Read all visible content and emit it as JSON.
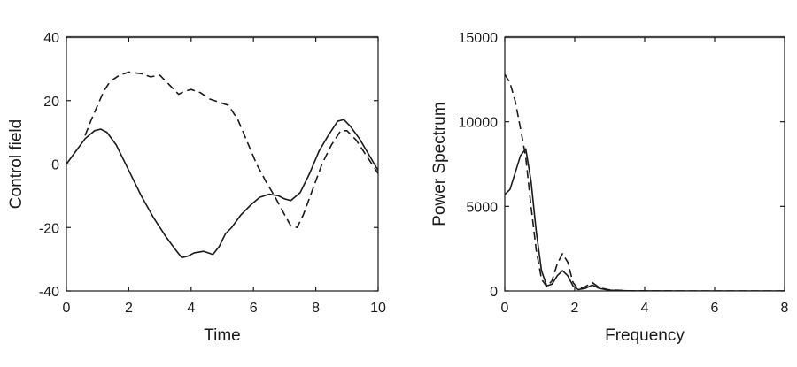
{
  "chart_data": [
    {
      "type": "line",
      "title": "",
      "xlabel": "Time",
      "ylabel": "Control field",
      "xlim": [
        0,
        10
      ],
      "ylim": [
        -40,
        40
      ],
      "xticks": [
        0,
        2,
        4,
        6,
        8,
        10
      ],
      "yticks": [
        -40,
        -20,
        0,
        20,
        40
      ],
      "grid": false,
      "legend": "none",
      "series": [
        {
          "style": "solid",
          "color": "#1a1a1a",
          "x": [
            0,
            0.3,
            0.6,
            0.9,
            1.1,
            1.3,
            1.6,
            2.0,
            2.4,
            2.8,
            3.2,
            3.5,
            3.7,
            3.9,
            4.1,
            4.4,
            4.7,
            4.9,
            5.1,
            5.3,
            5.6,
            5.9,
            6.2,
            6.5,
            6.8,
            7.0,
            7.2,
            7.5,
            7.8,
            8.1,
            8.4,
            8.7,
            8.9,
            9.1,
            9.4,
            9.7,
            10.0
          ],
          "y": [
            0,
            4,
            8,
            10.5,
            11,
            10,
            6,
            -2,
            -10,
            -17,
            -23,
            -27,
            -29.5,
            -29,
            -28,
            -27.5,
            -28.5,
            -26,
            -22,
            -20,
            -16,
            -13,
            -10.5,
            -9.5,
            -10,
            -11,
            -11.5,
            -9,
            -3,
            4,
            9,
            13.5,
            14,
            12,
            8,
            3,
            -2
          ]
        },
        {
          "style": "dashed",
          "color": "#1a1a1a",
          "x": [
            0.6,
            0.8,
            1.0,
            1.2,
            1.4,
            1.7,
            2.0,
            2.4,
            2.7,
            3.0,
            3.2,
            3.4,
            3.6,
            3.8,
            4.0,
            4.3,
            4.6,
            4.9,
            5.2,
            5.5,
            5.8,
            6.1,
            6.4,
            6.7,
            7.0,
            7.2,
            7.4,
            7.6,
            7.9,
            8.2,
            8.5,
            8.8,
            9.0,
            9.3,
            9.6,
            10.0
          ],
          "y": [
            9,
            14,
            18.5,
            23,
            26,
            28,
            29,
            28.5,
            27.5,
            28,
            26,
            24,
            22,
            23,
            23.5,
            22.5,
            20.5,
            19.5,
            18.5,
            14,
            7,
            0,
            -5.5,
            -10.5,
            -16,
            -19.5,
            -20,
            -16,
            -8,
            0,
            6,
            10.5,
            10.5,
            7.5,
            3,
            -3
          ]
        }
      ]
    },
    {
      "type": "line",
      "title": "",
      "xlabel": "Frequency",
      "ylabel": "Power Spectrum",
      "xlim": [
        0,
        8
      ],
      "ylim": [
        0,
        15000
      ],
      "xticks": [
        0,
        2,
        4,
        6,
        8
      ],
      "yticks": [
        0,
        5000,
        10000,
        15000
      ],
      "grid": false,
      "legend": "none",
      "series": [
        {
          "style": "solid",
          "color": "#1a1a1a",
          "x": [
            0,
            0.15,
            0.3,
            0.45,
            0.6,
            0.75,
            0.9,
            1.05,
            1.2,
            1.35,
            1.5,
            1.65,
            1.8,
            1.95,
            2.1,
            2.3,
            2.5,
            2.7,
            3.0,
            3.5,
            4.0,
            5.0,
            6.0,
            7.0,
            8.0
          ],
          "y": [
            5700,
            6000,
            7000,
            8000,
            8400,
            6500,
            3500,
            1200,
            300,
            400,
            900,
            1200,
            900,
            300,
            80,
            150,
            350,
            150,
            40,
            10,
            5,
            0,
            0,
            0,
            0
          ]
        },
        {
          "style": "dashed",
          "color": "#1a1a1a",
          "x": [
            0,
            0.15,
            0.3,
            0.45,
            0.6,
            0.75,
            0.9,
            1.05,
            1.2,
            1.35,
            1.5,
            1.65,
            1.8,
            1.95,
            2.1,
            2.3,
            2.5,
            2.7,
            3.0,
            3.5,
            4.0,
            5.0,
            6.0,
            7.0,
            8.0
          ],
          "y": [
            12800,
            12300,
            11200,
            9600,
            7900,
            5000,
            2400,
            700,
            250,
            600,
            1600,
            2200,
            1700,
            500,
            120,
            250,
            500,
            200,
            60,
            15,
            5,
            0,
            0,
            0,
            0
          ]
        }
      ]
    }
  ]
}
